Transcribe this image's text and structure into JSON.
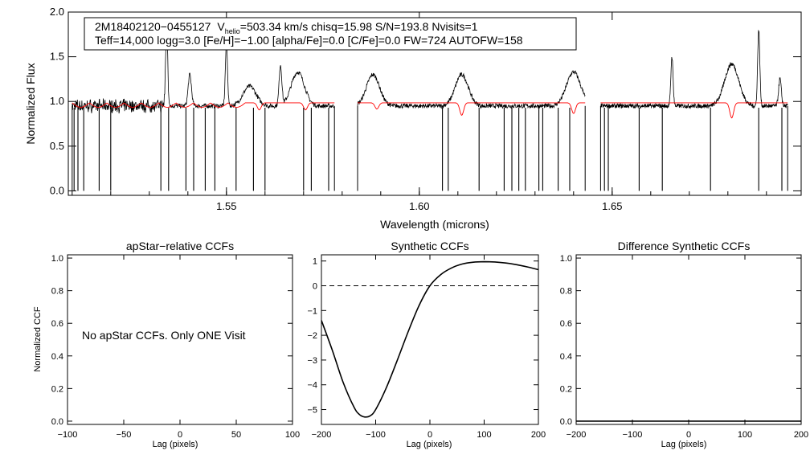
{
  "chart_data": [
    {
      "type": "line",
      "id": "spectrum",
      "xlabel": "Wavelength (microns)",
      "ylabel": "Normalized Flux",
      "xlim": [
        1.509,
        1.699
      ],
      "ylim": [
        -0.05,
        2.0
      ],
      "xticks": [
        1.55,
        1.6,
        1.65
      ],
      "xtick_labels": [
        "1.55",
        "1.60",
        "1.65"
      ],
      "yticks": [
        0.0,
        0.5,
        1.0,
        1.5,
        2.0
      ],
      "ytick_labels": [
        "0.0",
        "0.5",
        "1.0",
        "1.5",
        "2.0"
      ],
      "info_line1": {
        "id": "2M18402120−0455127",
        "v_label": "V",
        "v_sub": "helio",
        "rest": "=503.34 km/s  chisq=15.98  S/N=193.8  Nvisits=1"
      },
      "info_line2": "Teff=14,000 logg=3.0 [Fe/H]=−1.00 [alpha/Fe]=0.0 [C/Fe]=0.0 FW=724 AUTOFW=158",
      "detectors": [
        [
          1.51,
          1.578
        ],
        [
          1.584,
          1.643
        ],
        [
          1.647,
          1.6955
        ]
      ],
      "series": [
        {
          "name": "observed",
          "color": "#000000",
          "baseline": 0.95
        },
        {
          "name": "model",
          "color": "#ff0000",
          "baseline": 0.985
        }
      ],
      "emission_lines": [
        {
          "x": 1.5345,
          "h": 0.85,
          "w": 0.0004
        },
        {
          "x": 1.5405,
          "h": 0.35,
          "w": 0.0006
        },
        {
          "x": 1.55,
          "h": 0.7,
          "w": 0.0004
        },
        {
          "x": 1.556,
          "h": 0.22,
          "w": 0.0012
        },
        {
          "x": 1.564,
          "h": 0.45,
          "w": 0.0005
        },
        {
          "x": 1.5685,
          "h": 0.38,
          "w": 0.0012
        },
        {
          "x": 1.588,
          "h": 0.35,
          "w": 0.0012
        },
        {
          "x": 1.611,
          "h": 0.35,
          "w": 0.0012
        },
        {
          "x": 1.64,
          "h": 0.38,
          "w": 0.0013
        },
        {
          "x": 1.6655,
          "h": 0.55,
          "w": 0.0004
        },
        {
          "x": 1.681,
          "h": 0.47,
          "w": 0.0013
        },
        {
          "x": 1.688,
          "h": 0.85,
          "w": 0.0004
        },
        {
          "x": 1.6935,
          "h": 0.3,
          "w": 0.0005
        }
      ],
      "absorption_features": [
        1.5105,
        1.5115,
        1.513,
        1.517,
        1.52,
        1.533,
        1.535,
        1.5395,
        1.5415,
        1.5445,
        1.547,
        1.5525,
        1.557,
        1.56,
        1.57,
        1.572,
        1.5765,
        1.606,
        1.6075,
        1.6155,
        1.622,
        1.624,
        1.6258,
        1.6275,
        1.631,
        1.632,
        1.636,
        1.639,
        1.648,
        1.649,
        1.657,
        1.663,
        1.6755,
        1.688,
        1.694
      ],
      "model_dips": [
        {
          "x": 1.5585,
          "d": 0.08
        },
        {
          "x": 1.5705,
          "d": 0.08
        },
        {
          "x": 1.589,
          "d": 0.07
        },
        {
          "x": 1.611,
          "d": 0.14
        },
        {
          "x": 1.64,
          "d": 0.12
        },
        {
          "x": 1.681,
          "d": 0.17
        }
      ]
    },
    {
      "type": "line",
      "id": "apstar_ccf",
      "title": "apStar−relative CCFs",
      "xlabel": "Lag (pixels)",
      "ylabel": "Normalized CCF",
      "xlim": [
        -100,
        100
      ],
      "ylim": [
        -0.02,
        1.02
      ],
      "xticks": [
        -100,
        -50,
        0,
        50,
        100
      ],
      "xtick_labels": [
        "−100",
        "−50",
        "0",
        "50",
        "100"
      ],
      "yticks": [
        0.0,
        0.2,
        0.4,
        0.6,
        0.8,
        1.0
      ],
      "ytick_labels": [
        "0.0",
        "0.2",
        "0.4",
        "0.6",
        "0.8",
        "1.0"
      ],
      "annotation": "No apStar CCFs.  Only ONE Visit",
      "series": []
    },
    {
      "type": "line",
      "id": "synthetic_ccf",
      "title": "Synthetic CCFs",
      "xlabel": "Lag (pixels)",
      "ylabel": "",
      "xlim": [
        -200,
        200
      ],
      "ylim": [
        -5.6,
        1.25
      ],
      "xticks": [
        -200,
        -100,
        0,
        100,
        200
      ],
      "xtick_labels": [
        "−200",
        "−100",
        "0",
        "100",
        "200"
      ],
      "yticks": [
        -5,
        -4,
        -3,
        -2,
        -1,
        0,
        1
      ],
      "ytick_labels": [
        "−5",
        "−4",
        "−3",
        "−2",
        "−1",
        "0",
        "1"
      ],
      "zero_line": 0,
      "series": [
        {
          "name": "synthetic",
          "x": [
            -200,
            -180,
            -160,
            -140,
            -130,
            -120,
            -110,
            -100,
            -80,
            -60,
            -40,
            -20,
            0,
            20,
            40,
            60,
            80,
            100,
            120,
            140,
            160,
            180,
            200
          ],
          "y": [
            -1.4,
            -2.6,
            -3.9,
            -4.9,
            -5.2,
            -5.3,
            -5.25,
            -5.0,
            -4.1,
            -3.0,
            -1.85,
            -0.8,
            0.0,
            0.45,
            0.72,
            0.88,
            0.95,
            0.97,
            0.96,
            0.92,
            0.85,
            0.76,
            0.65
          ]
        }
      ]
    },
    {
      "type": "line",
      "id": "difference_ccf",
      "title": "Difference Synthetic CCFs",
      "xlabel": "Lag (pixels)",
      "ylabel": "",
      "xlim": [
        -200,
        200
      ],
      "ylim": [
        -0.02,
        1.02
      ],
      "xticks": [
        -200,
        -100,
        0,
        100,
        200
      ],
      "xtick_labels": [
        "−200",
        "−100",
        "0",
        "100",
        "200"
      ],
      "yticks": [
        0.0,
        0.2,
        0.4,
        0.6,
        0.8,
        1.0
      ],
      "ytick_labels": [
        "0.0",
        "0.2",
        "0.4",
        "0.6",
        "0.8",
        "1.0"
      ],
      "series": [
        {
          "name": "difference",
          "x": [
            -200,
            200
          ],
          "y": [
            0.0,
            0.0
          ]
        }
      ]
    }
  ]
}
